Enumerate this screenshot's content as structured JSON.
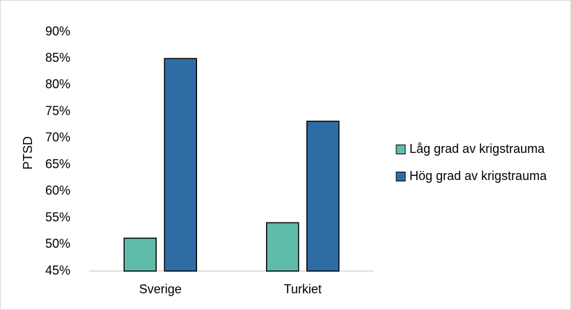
{
  "chart_data": {
    "type": "bar",
    "title": "",
    "xlabel": "",
    "ylabel": "PTSD",
    "categories": [
      "Sverige",
      "Turkiet"
    ],
    "series": [
      {
        "name": "Låg grad av krigstrauma",
        "values": [
          51.2,
          54.1
        ],
        "color": "#5fbcaa"
      },
      {
        "name": "Hög grad av krigstrauma",
        "values": [
          85.0,
          73.2
        ],
        "color": "#2e6ca6"
      }
    ],
    "ylim": [
      45,
      90
    ],
    "yticks": [
      "45%",
      "50%",
      "55%",
      "60%",
      "65%",
      "70%",
      "75%",
      "80%",
      "85%",
      "90%"
    ],
    "grid": false,
    "legend_position": "right",
    "bar_edge_color": "#000000"
  }
}
